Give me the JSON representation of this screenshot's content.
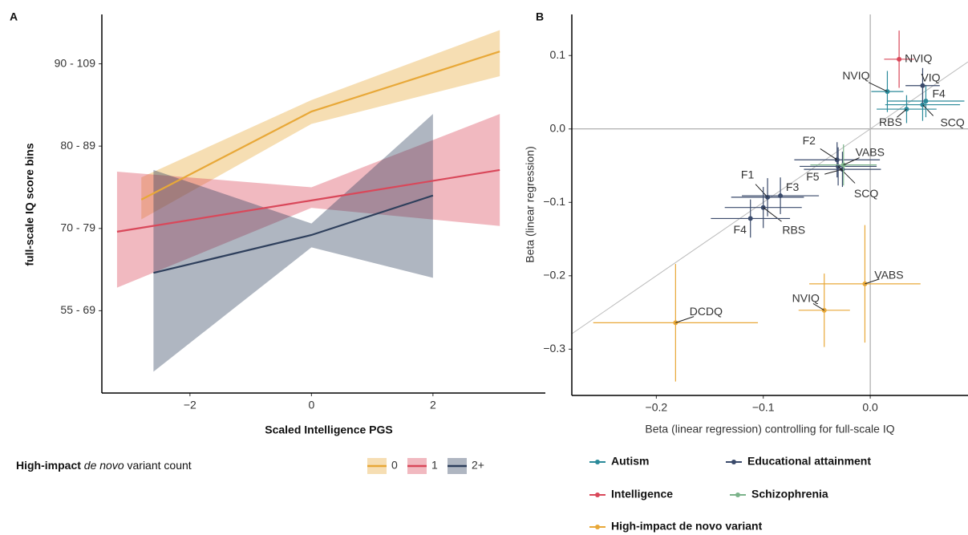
{
  "chart_data": [
    {
      "type": "line",
      "panel": "A",
      "xlabel": "Scaled Intelligence PGS",
      "ylabel": "full-scale IQ score bins",
      "xlim": [
        -3.45,
        3.85
      ],
      "xticks": [
        {
          "value": -2,
          "label": "−2"
        },
        0,
        2
      ],
      "ylim": [
        0,
        4.6
      ],
      "yticks": [
        {
          "value": 1,
          "label": "55 - 69"
        },
        {
          "value": 2,
          "label": "70 - 79"
        },
        {
          "value": 3,
          "label": "80 - 89"
        },
        {
          "value": 4,
          "label": "90 - 109"
        }
      ],
      "legend_title": [
        "High-impact ",
        "de novo",
        " variant count"
      ],
      "series": [
        {
          "name": "0",
          "color": "#e8a838",
          "x": [
            -2.8,
            0,
            3.1
          ],
          "values": [
            2.35,
            3.42,
            4.15
          ],
          "lower": [
            2.11,
            3.27,
            3.85
          ],
          "upper": [
            2.62,
            3.56,
            4.41
          ]
        },
        {
          "name": "1",
          "color": "#d9485a",
          "x": [
            -3.2,
            0,
            3.1
          ],
          "values": [
            1.96,
            2.34,
            2.71
          ],
          "lower": [
            1.28,
            2.25,
            2.03
          ],
          "upper": [
            2.69,
            2.5,
            3.39
          ]
        },
        {
          "name": "2+",
          "color": "#2e3f5c",
          "x": [
            -2.6,
            0,
            2
          ],
          "values": [
            1.46,
            1.92,
            2.4
          ],
          "lower": [
            0.26,
            1.77,
            1.4
          ],
          "upper": [
            2.71,
            2.06,
            3.39
          ]
        }
      ]
    },
    {
      "type": "scatter",
      "panel": "B",
      "xlabel": "Beta (linear regression) controlling for full-scale IQ",
      "ylabel": "Beta (linear regression)",
      "xlim": [
        -0.279,
        0.0914
      ],
      "xticks": [
        {
          "value": -0.2,
          "label": "−0.2"
        },
        {
          "value": -0.1,
          "label": "−0.1"
        },
        {
          "value": 0,
          "label": "0.0"
        }
      ],
      "ylim": [
        -0.363,
        0.156
      ],
      "yticks": [
        {
          "value": -0.3,
          "label": "−0.3"
        },
        {
          "value": -0.2,
          "label": "−0.2"
        },
        {
          "value": -0.1,
          "label": "−0.1"
        },
        {
          "value": 0,
          "label": "0.0"
        },
        0.1
      ],
      "series": [
        {
          "name": "Autism",
          "color": "#2b8a9a",
          "labels": [
            "NVIQ",
            "F4",
            "SCQ",
            "RBS"
          ],
          "x": [
            0.016,
            0.052,
            0.049,
            0.034
          ],
          "values": [
            0.051,
            0.038,
            0.033,
            0.027
          ],
          "xerr": [
            0.015,
            0.036,
            0.035,
            0.028
          ],
          "yerr": [
            0.028,
            0.022,
            0.022,
            0.019
          ]
        },
        {
          "name": "Educational attainment",
          "color": "#3a4a6b",
          "labels": [
            "VIQ",
            "F2",
            "F5",
            "SCQ",
            "F1",
            "F3",
            "RBS",
            "F4"
          ],
          "x": [
            0.049,
            -0.031,
            -0.026,
            -0.03,
            -0.096,
            -0.084,
            -0.1,
            -0.112
          ],
          "values": [
            0.059,
            -0.042,
            -0.055,
            -0.051,
            -0.093,
            -0.091,
            -0.107,
            -0.122
          ],
          "xerr": [
            0.016,
            0.04,
            0.036,
            0.036,
            0.034,
            0.036,
            0.036,
            0.037
          ],
          "yerr": [
            0.024,
            0.024,
            0.024,
            0.026,
            0.026,
            0.025,
            0.028,
            0.026
          ]
        },
        {
          "name": "Intelligence",
          "color": "#d9485a",
          "labels": [
            "NVIQ"
          ],
          "x": [
            0.027
          ],
          "values": [
            0.095
          ],
          "xerr": [
            0.014
          ],
          "yerr": [
            0.039
          ]
        },
        {
          "name": "Schizophrenia",
          "color": "#7bb38a",
          "labels": [
            "VABS"
          ],
          "x": [
            -0.025
          ],
          "values": [
            -0.049
          ],
          "xerr": [
            0.031
          ],
          "yerr": [
            0.028
          ]
        },
        {
          "name": "High-impact de novo variant",
          "color": "#e8a838",
          "labels": [
            "VABS",
            "NVIQ",
            "DCDQ"
          ],
          "x": [
            -0.005,
            -0.043,
            -0.182
          ],
          "values": [
            -0.211,
            -0.247,
            -0.264
          ],
          "xerr": [
            0.052,
            0.024,
            0.077
          ],
          "yerr": [
            0.08,
            0.05,
            0.08
          ]
        }
      ]
    }
  ]
}
